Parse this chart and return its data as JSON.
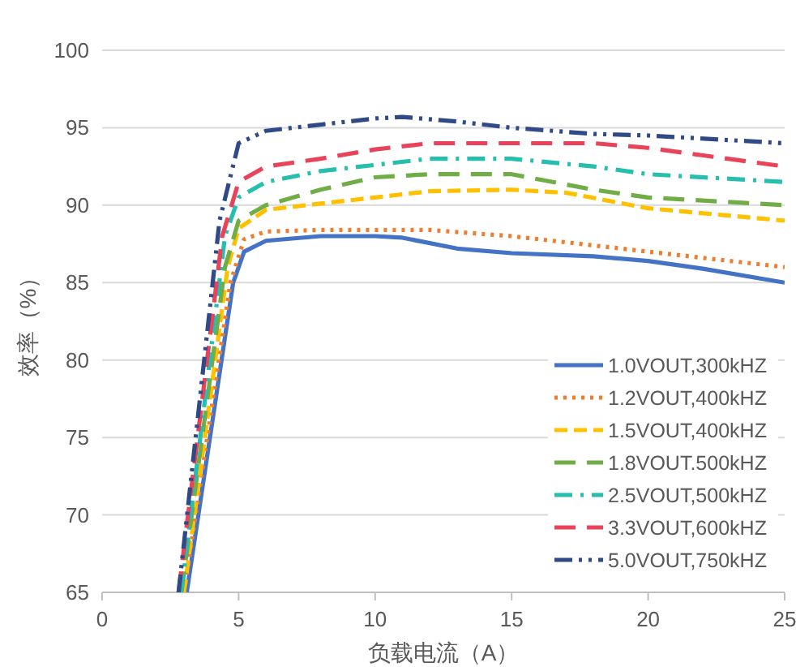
{
  "chart_data": {
    "type": "line",
    "xlabel": "负载电流（A）",
    "ylabel": "效率（%）",
    "xlim": [
      0,
      25
    ],
    "ylim": [
      65,
      100
    ],
    "xticks": [
      0,
      5,
      10,
      15,
      20,
      25
    ],
    "yticks": [
      65,
      70,
      75,
      80,
      85,
      90,
      95,
      100
    ],
    "grid": "y",
    "legend": "bottom right",
    "marker": "none",
    "series": [
      {
        "name": "1.0VOUT,300kHZ",
        "color": "#4472c4",
        "line_style": "solid",
        "x": [
          3.1,
          4.8,
          5.2,
          6,
          8,
          10,
          11,
          13,
          15,
          18,
          20,
          22,
          25
        ],
        "values": [
          65,
          85,
          87,
          87.7,
          88,
          88,
          87.9,
          87.2,
          86.9,
          86.7,
          86.4,
          85.9,
          85
        ]
      },
      {
        "name": "1.2VOUT,400kHZ",
        "color": "#ed7d31",
        "line_style": "dotted",
        "x": [
          3.0,
          4.7,
          5.2,
          6,
          8,
          10,
          12,
          15,
          18,
          20,
          25
        ],
        "values": [
          65,
          85,
          87.8,
          88.3,
          88.4,
          88.4,
          88.4,
          88,
          87.4,
          87,
          86
        ]
      },
      {
        "name": "1.5VOUT,400kHZ",
        "color": "#ffc000",
        "line_style": "dashed",
        "x": [
          3.0,
          4.6,
          5,
          6,
          8,
          10,
          12,
          15,
          17,
          20,
          25
        ],
        "values": [
          65,
          86,
          88.5,
          89.7,
          90.1,
          90.5,
          90.9,
          91,
          90.8,
          89.8,
          89
        ]
      },
      {
        "name": "1.8VOUT.500kHZ",
        "color": "#70ad47",
        "line_style": "longdash",
        "x": [
          2.9,
          4.5,
          5,
          6,
          8,
          10,
          12,
          15,
          18,
          20,
          25
        ],
        "values": [
          65,
          86,
          89,
          90,
          91,
          91.8,
          92,
          92,
          91,
          90.5,
          90
        ]
      },
      {
        "name": "2.5VOUT,500kHZ",
        "color": "#26bfae",
        "line_style": "dashdot",
        "x": [
          2.9,
          4.5,
          5,
          6,
          8,
          10,
          12,
          15,
          18,
          20,
          25
        ],
        "values": [
          65,
          88,
          90.5,
          91.5,
          92.2,
          92.6,
          93,
          93,
          92.5,
          92,
          91.5
        ]
      },
      {
        "name": "3.3VOUT,600kHZ",
        "color": "#e8435a",
        "line_style": "longdash",
        "x": [
          2.8,
          4.4,
          5,
          6,
          8,
          10,
          12,
          15,
          18,
          20,
          25
        ],
        "values": [
          65,
          88,
          91.5,
          92.5,
          93,
          93.6,
          94,
          94,
          94,
          93.7,
          92.5
        ]
      },
      {
        "name": "5.0VOUT,750kHZ",
        "color": "#2f4a86",
        "line_style": "dashdotdot",
        "x": [
          2.8,
          4.3,
          5,
          6,
          8,
          10,
          11,
          13,
          15,
          18,
          20,
          25
        ],
        "values": [
          65,
          89,
          94,
          94.8,
          95.2,
          95.6,
          95.7,
          95.4,
          95,
          94.6,
          94.5,
          94
        ]
      }
    ]
  }
}
